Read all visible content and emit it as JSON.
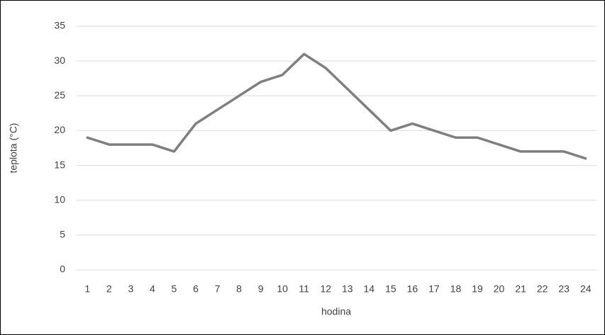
{
  "chart_data": {
    "type": "line",
    "x_label": "hodina",
    "y_label": "teplota (°C)",
    "categories": [
      1,
      2,
      3,
      4,
      5,
      6,
      7,
      8,
      9,
      10,
      11,
      12,
      13,
      14,
      15,
      16,
      17,
      18,
      19,
      20,
      21,
      22,
      23,
      24
    ],
    "values": [
      19,
      18,
      18,
      18,
      17,
      21,
      23,
      25,
      27,
      28,
      31,
      29,
      26,
      23,
      20,
      21,
      20,
      19,
      19,
      18,
      17,
      17,
      17,
      16
    ],
    "color": "#7f7f7f",
    "ylim": [
      0,
      35
    ],
    "yticks": [
      0,
      5,
      10,
      15,
      20,
      25,
      30,
      35
    ],
    "grid": true
  }
}
